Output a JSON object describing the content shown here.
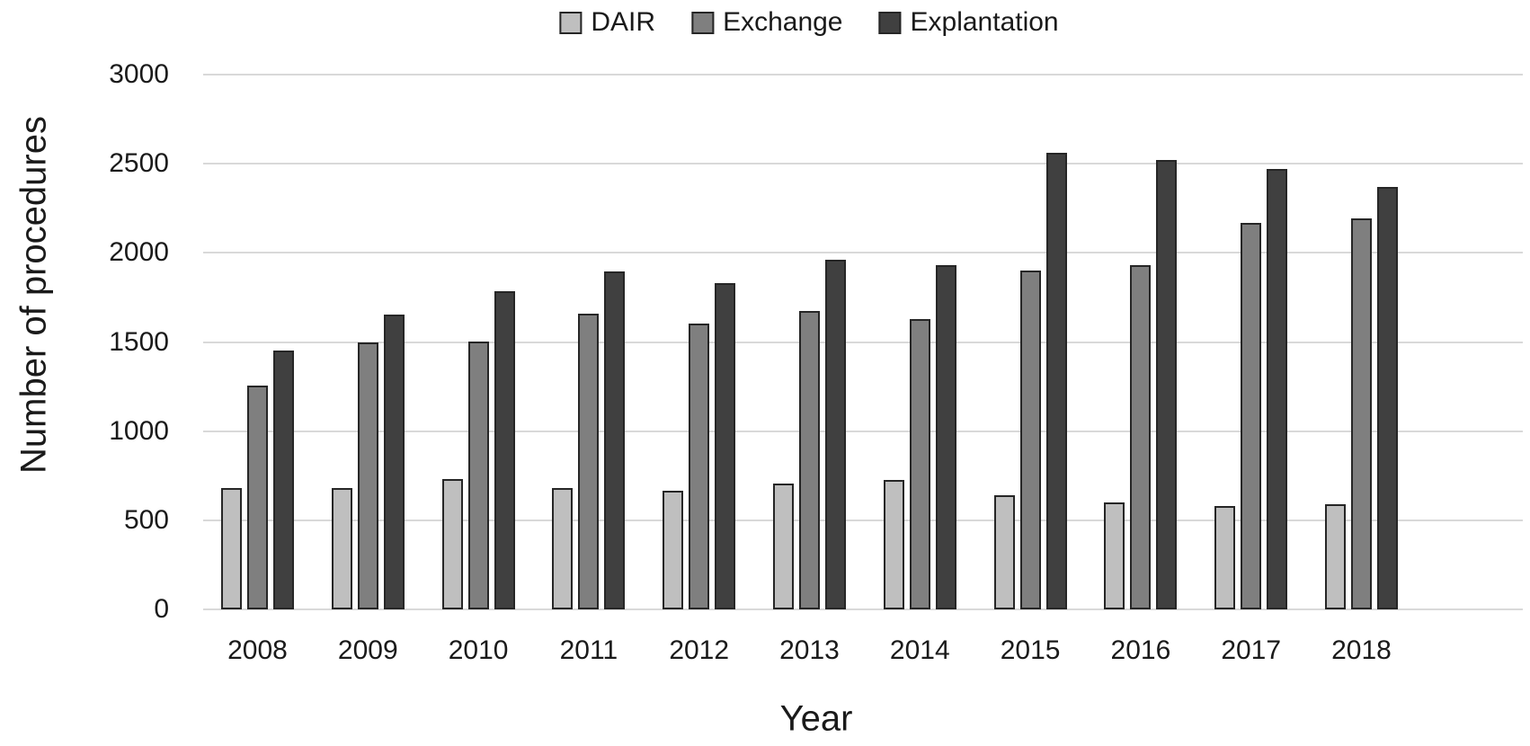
{
  "chart_data": {
    "type": "bar",
    "title": "",
    "xlabel": "Year",
    "ylabel": "Number of procedures",
    "categories": [
      "2008",
      "2009",
      "2010",
      "2011",
      "2012",
      "2013",
      "2014",
      "2015",
      "2016",
      "2017",
      "2018"
    ],
    "series": [
      {
        "name": "DAIR",
        "color": "#bfbfbf",
        "values": [
          680,
          680,
          730,
          680,
          665,
          705,
          725,
          640,
          600,
          580,
          590
        ]
      },
      {
        "name": "Exchange",
        "color": "#7f7f7f",
        "values": [
          1255,
          1495,
          1505,
          1660,
          1605,
          1675,
          1630,
          1900,
          1930,
          2170,
          2195
        ]
      },
      {
        "name": "Explantation",
        "color": "#404040",
        "values": [
          1450,
          1655,
          1785,
          1895,
          1830,
          1960,
          1930,
          2560,
          2520,
          2470,
          2370
        ]
      }
    ],
    "ylim": [
      0,
      3000
    ],
    "yticks": [
      0,
      500,
      1000,
      1500,
      2000,
      2500,
      3000
    ],
    "grid": "horizontal",
    "legend_position": "top-center",
    "colors": {
      "bar_outline": "#262626",
      "gridline": "#d9d9d9",
      "text": "#1a1a1a",
      "background": "#ffffff"
    }
  }
}
